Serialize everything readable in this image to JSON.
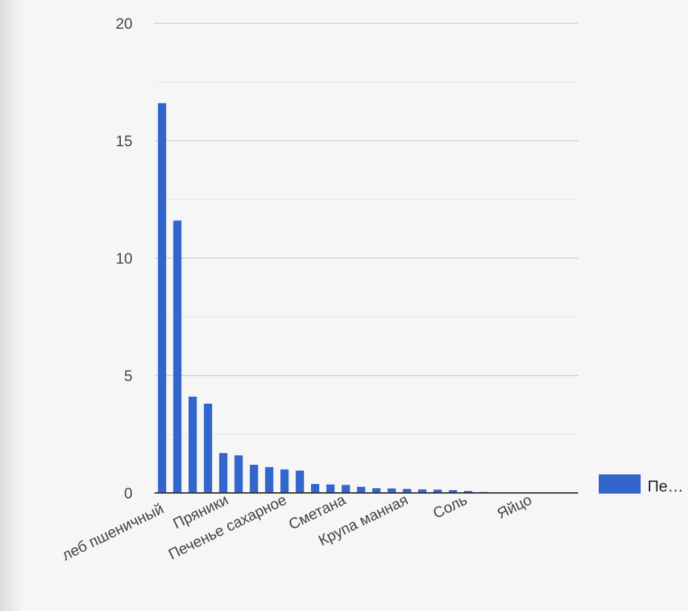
{
  "chart_data": {
    "type": "bar",
    "categories": [
      "Хлеб пшеничный",
      "",
      "",
      "Пряники",
      "",
      "",
      "",
      "Печенье сахарное",
      "",
      "",
      "Сметана",
      "",
      "",
      "Крупа манная",
      "",
      "",
      "",
      "Соль",
      "",
      "",
      "Яйцо",
      "",
      "",
      "",
      "",
      ""
    ],
    "visible_tick_labels": [
      "леб пшеничный",
      "Пряники",
      "Печенье сахарное",
      "Сметана",
      "Крупа манная",
      "Соль",
      "Яйцо"
    ],
    "series": [
      {
        "name": "Пе…",
        "values": [
          16.6,
          11.6,
          4.1,
          3.8,
          1.7,
          1.6,
          1.2,
          1.1,
          1.0,
          0.95,
          0.38,
          0.36,
          0.34,
          0.26,
          0.2,
          0.19,
          0.17,
          0.15,
          0.14,
          0.12,
          0.08,
          0.04,
          0.02,
          0.01,
          0.01,
          0.0
        ]
      }
    ],
    "yticks": [
      0,
      5,
      10,
      15,
      20
    ],
    "ylim": [
      0,
      20
    ],
    "grid": true,
    "legend": {
      "label": "Пе…",
      "placement": "right"
    },
    "colors": {
      "bar": "#3366cc",
      "major_grid": "#c9c9c9",
      "minor_grid": "#e6e6e6",
      "axis": "#333333",
      "label_text": "#444444"
    }
  }
}
